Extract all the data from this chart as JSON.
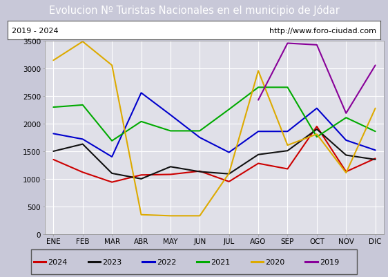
{
  "title": "Evolucion Nº Turistas Nacionales en el municipio de Jódar",
  "subtitle_left": "2019 - 2024",
  "subtitle_right": "http://www.foro-ciudad.com",
  "months": [
    "ENE",
    "FEB",
    "MAR",
    "ABR",
    "MAY",
    "JUN",
    "JUL",
    "AGO",
    "SEP",
    "OCT",
    "NOV",
    "DIC"
  ],
  "series": {
    "2024": [
      1350,
      1120,
      940,
      1070,
      1080,
      1140,
      950,
      1280,
      1180,
      1950,
      1130,
      1370
    ],
    "2023": [
      1500,
      1630,
      1100,
      1000,
      1220,
      1130,
      1090,
      1440,
      1510,
      1900,
      1430,
      1350
    ],
    "2022": [
      1820,
      1720,
      1400,
      2560,
      2160,
      1750,
      1480,
      1860,
      1860,
      2280,
      1700,
      1520
    ],
    "2021": [
      2300,
      2340,
      1690,
      2040,
      1870,
      1870,
      2260,
      2660,
      2660,
      1760,
      2110,
      1860
    ],
    "2020": [
      3150,
      3490,
      3060,
      350,
      330,
      330,
      1100,
      2960,
      1610,
      1810,
      1110,
      2280
    ],
    "2019": [
      null,
      null,
      null,
      null,
      null,
      null,
      null,
      2430,
      3460,
      3430,
      2190,
      3060
    ]
  },
  "colors": {
    "2024": "#cc0000",
    "2023": "#111111",
    "2022": "#0000cc",
    "2021": "#00aa00",
    "2020": "#ddaa00",
    "2019": "#880099"
  },
  "ylim": [
    0,
    3500
  ],
  "yticks": [
    0,
    500,
    1000,
    1500,
    2000,
    2500,
    3000,
    3500
  ],
  "plot_bg": "#e0e0e8",
  "fig_bg": "#c8c8d8",
  "header_bg": "#4472c4",
  "title_color": "white",
  "title_fontsize": 10.5,
  "subtitle_fontsize": 8,
  "tick_fontsize": 7.5,
  "legend_order": [
    "2024",
    "2023",
    "2022",
    "2021",
    "2020",
    "2019"
  ]
}
